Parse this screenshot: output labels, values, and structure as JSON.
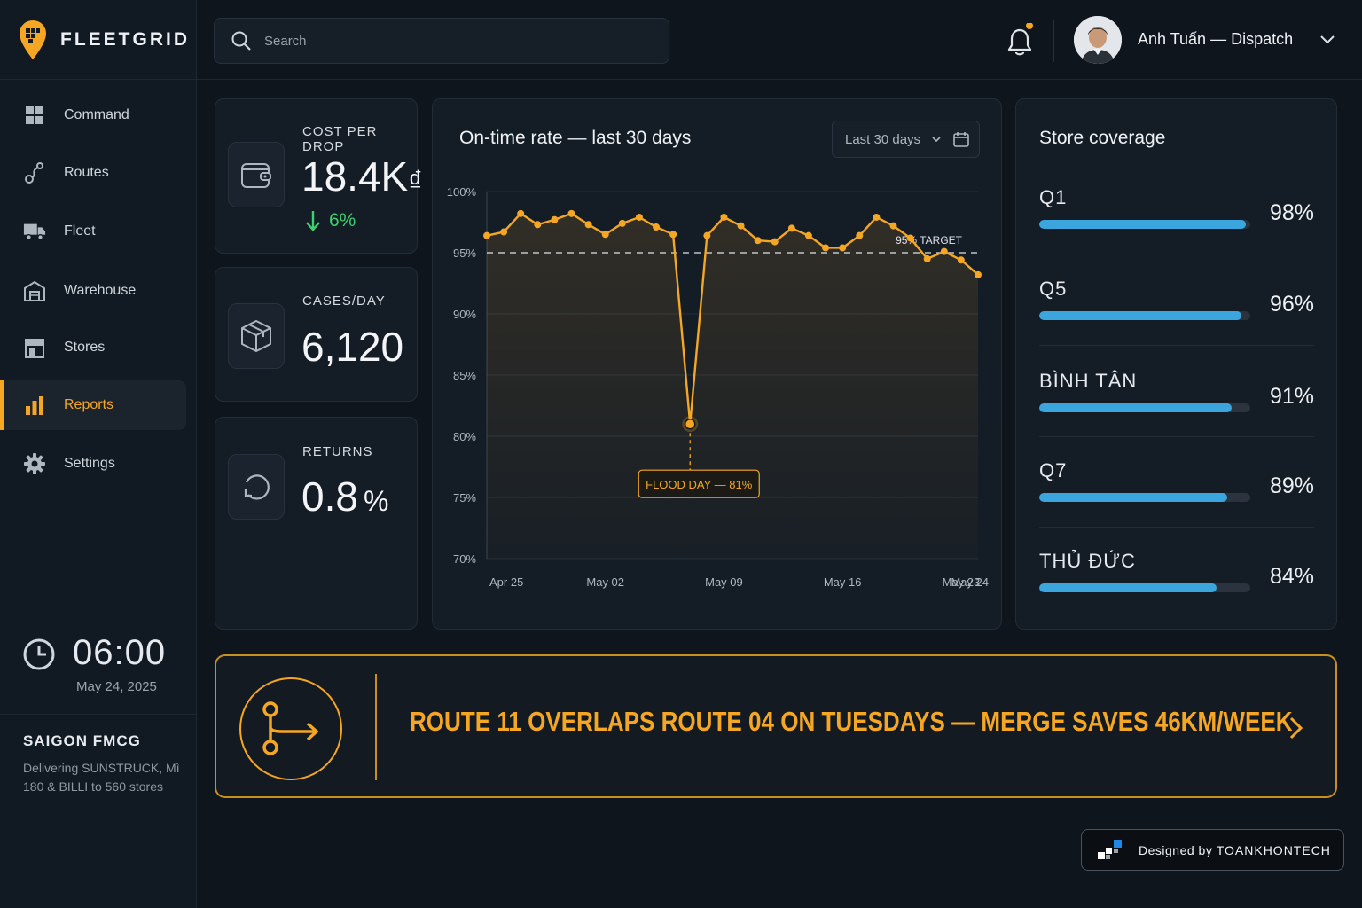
{
  "brand": {
    "name": "FLEETGRID",
    "accent": "#f5a623"
  },
  "search": {
    "placeholder": "Search",
    "icon": "search-icon"
  },
  "user": {
    "name": "Anh Tuấn — Dispatch",
    "has_notification": true
  },
  "sidebar": {
    "items": [
      {
        "id": "command",
        "label": "Command",
        "icon": "grid-icon",
        "active": false
      },
      {
        "id": "routes",
        "label": "Routes",
        "icon": "route-icon",
        "active": false
      },
      {
        "id": "fleet",
        "label": "Fleet",
        "icon": "truck-icon",
        "active": false
      },
      {
        "id": "warehouse",
        "label": "Warehouse",
        "icon": "warehouse-icon",
        "active": false
      },
      {
        "id": "stores",
        "label": "Stores",
        "icon": "store-icon",
        "active": false
      },
      {
        "id": "reports",
        "label": "Reports",
        "icon": "bar-chart-icon",
        "active": true
      },
      {
        "id": "settings",
        "label": "Settings",
        "icon": "gear-icon",
        "active": false
      }
    ],
    "clock": {
      "time": "06:00",
      "date": "May 24, 2025"
    },
    "company": {
      "name": "SAIGON FMCG",
      "description": "Delivering SUNSTRUCK, Mì 180 & BILLI to 560 stores"
    }
  },
  "kpis": {
    "cost_per_drop": {
      "label": "COST PER DROP",
      "value": "18.4K",
      "unit": "₫",
      "delta": "6%",
      "delta_direction": "down",
      "delta_color": "#3ecf6e"
    },
    "cases_per_day": {
      "label": "CASES/DAY",
      "value": "6,120"
    },
    "returns": {
      "label": "RETURNS",
      "value": "0.8",
      "unit": "%"
    }
  },
  "chart": {
    "title": "On-time rate — last 30 days",
    "range": "Last 30 days",
    "target_label": "95% TARGET",
    "annotation": "FLOOD DAY — 81%"
  },
  "chart_data": {
    "type": "line",
    "x": [
      "Apr 25",
      "Apr 26",
      "Apr 27",
      "Apr 28",
      "Apr 29",
      "Apr 30",
      "May 01",
      "May 02",
      "May 03",
      "May 04",
      "May 05",
      "May 06",
      "May 07",
      "May 08",
      "May 09",
      "May 10",
      "May 11",
      "May 12",
      "May 13",
      "May 14",
      "May 15",
      "May 16",
      "May 17",
      "May 18",
      "May 19",
      "May 20",
      "May 21",
      "May 22",
      "May 23",
      "May 24"
    ],
    "y": [
      96.4,
      96.7,
      98.2,
      97.3,
      97.7,
      98.2,
      97.3,
      96.5,
      97.4,
      97.9,
      97.1,
      96.5,
      81.0,
      96.4,
      97.9,
      97.2,
      96.0,
      95.9,
      97.0,
      96.4,
      95.4,
      95.4,
      96.4,
      97.9,
      97.2,
      96.2,
      94.5,
      95.1,
      94.4,
      93.2
    ],
    "x_ticks": [
      "Apr 25",
      "May 02",
      "May 09",
      "May 16",
      "May 23",
      "May 24"
    ],
    "y_ticks": [
      "100%",
      "95%",
      "90%",
      "85%",
      "80%",
      "75%",
      "70%"
    ],
    "ylim": [
      70,
      100
    ],
    "target": 95,
    "annotated_point": {
      "x": "May 07",
      "y": 81
    },
    "line_color": "#f5a623",
    "grid": true
  },
  "coverage": {
    "title": "Store coverage",
    "bar_color": "#3ba6de",
    "rows": [
      {
        "name": "Q1",
        "pct_label": "98%",
        "value": 0.98
      },
      {
        "name": "Q5",
        "pct_label": "96%",
        "value": 0.96
      },
      {
        "name": "BÌNH TÂN",
        "pct_label": "91%",
        "value": 0.91
      },
      {
        "name": "Q7",
        "pct_label": "89%",
        "value": 0.89
      },
      {
        "name": "THỦ ĐỨC",
        "pct_label": "84%",
        "value": 0.84
      }
    ]
  },
  "insight": {
    "text": "ROUTE 11 OVERLAPS ROUTE 04 ON TUESDAYS — MERGE SAVES 46KM/WEEK",
    "icon": "route-merge-icon"
  },
  "credit": {
    "prefix": "Designed by",
    "name": "TOANKHONTECH"
  }
}
